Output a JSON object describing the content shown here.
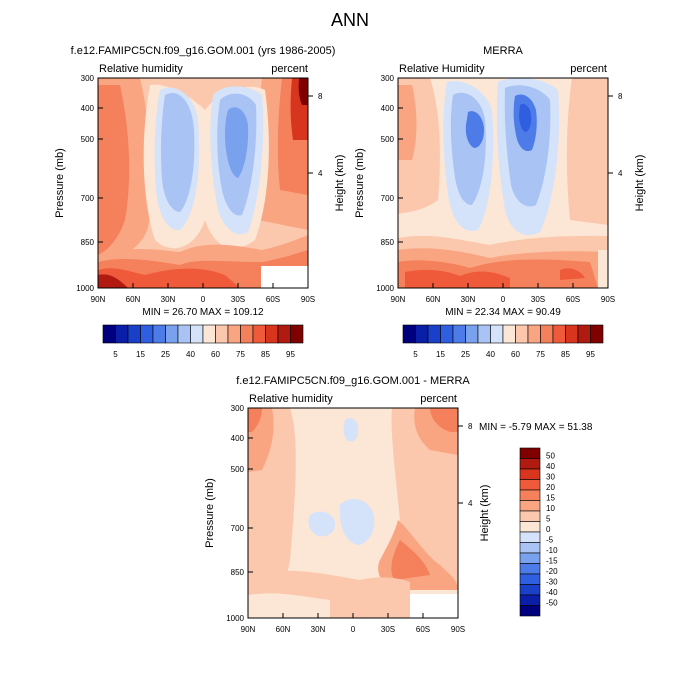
{
  "figure": {
    "title": "ANN"
  },
  "chart_data": [
    {
      "id": "model",
      "type": "heatmap",
      "title": "f.e12.FAMIPC5CN.f09_g16.GOM.001 (yrs 1986-2005)",
      "left_label": "Relative humidity",
      "right_label": "percent",
      "xlabel": "",
      "ylabel": "Pressure (mb)",
      "ylabel_right": "Height (km)",
      "x_ticks": [
        "90N",
        "60N",
        "30N",
        "0",
        "30S",
        "60S",
        "90S"
      ],
      "y_ticks": [
        "300",
        "400",
        "500",
        "700",
        "850",
        "1000"
      ],
      "y_tick_values": [
        300,
        400,
        500,
        700,
        850,
        1000
      ],
      "height_ticks": [
        "8",
        "4"
      ],
      "height_tick_values": [
        8,
        4
      ],
      "xlim": [
        90,
        -90
      ],
      "ylim": [
        1000,
        300
      ],
      "stats": "MIN = 26.70  MAX = 109.12",
      "min": 26.7,
      "max": 109.12,
      "colorbar": {
        "labels": [
          "5",
          "15",
          "25",
          "40",
          "60",
          "75",
          "85",
          "95"
        ],
        "colors": [
          "#00007f",
          "#0a1ea8",
          "#1a3fc8",
          "#2f5ee0",
          "#4d7ce8",
          "#7aa1ee",
          "#a9c4f4",
          "#d4e3f9",
          "#fce6d6",
          "#fbc8ad",
          "#f9a582",
          "#f5805c",
          "#ef5a3a",
          "#d8351f",
          "#b01a10",
          "#800000"
        ]
      }
    },
    {
      "id": "obs",
      "type": "heatmap",
      "title": "MERRA",
      "left_label": "Relative Humidity",
      "right_label": "percent",
      "xlabel": "",
      "ylabel": "Pressure (mb)",
      "ylabel_right": "Height (km)",
      "x_ticks": [
        "90N",
        "60N",
        "30N",
        "0",
        "30S",
        "60S",
        "90S"
      ],
      "y_ticks": [
        "300",
        "400",
        "500",
        "700",
        "850",
        "1000"
      ],
      "y_tick_values": [
        300,
        400,
        500,
        700,
        850,
        1000
      ],
      "height_ticks": [
        "8",
        "4"
      ],
      "height_tick_values": [
        8,
        4
      ],
      "xlim": [
        90,
        -90
      ],
      "ylim": [
        1000,
        300
      ],
      "stats": "MIN = 22.34  MAX = 90.49",
      "min": 22.34,
      "max": 90.49,
      "colorbar": {
        "labels": [
          "5",
          "15",
          "25",
          "40",
          "60",
          "75",
          "85",
          "95"
        ],
        "colors": [
          "#00007f",
          "#0a1ea8",
          "#1a3fc8",
          "#2f5ee0",
          "#4d7ce8",
          "#7aa1ee",
          "#a9c4f4",
          "#d4e3f9",
          "#fce6d6",
          "#fbc8ad",
          "#f9a582",
          "#f5805c",
          "#ef5a3a",
          "#d8351f",
          "#b01a10",
          "#800000"
        ]
      }
    },
    {
      "id": "diff",
      "type": "heatmap",
      "title": "f.e12.FAMIPC5CN.f09_g16.GOM.001 - MERRA",
      "left_label": "Relative humidity",
      "right_label": "percent",
      "xlabel": "",
      "ylabel": "Pressure (mb)",
      "ylabel_right": "Height (km)",
      "x_ticks": [
        "90N",
        "60N",
        "30N",
        "0",
        "30S",
        "60S",
        "90S"
      ],
      "y_ticks": [
        "300",
        "400",
        "500",
        "700",
        "850",
        "1000"
      ],
      "y_tick_values": [
        300,
        400,
        500,
        700,
        850,
        1000
      ],
      "height_ticks": [
        "8",
        "4"
      ],
      "height_tick_values": [
        8,
        4
      ],
      "xlim": [
        90,
        -90
      ],
      "ylim": [
        1000,
        300
      ],
      "stats": "MIN =  -5.79  MAX =  51.38",
      "min": -5.79,
      "max": 51.38,
      "colorbar": {
        "labels": [
          "50",
          "40",
          "30",
          "20",
          "15",
          "10",
          "5",
          "0",
          "-5",
          "-10",
          "-15",
          "-20",
          "-30",
          "-40",
          "-50"
        ],
        "colors": [
          "#800000",
          "#b01a10",
          "#d8351f",
          "#ef5a3a",
          "#f5805c",
          "#f9a582",
          "#fbc8ad",
          "#fce6d6",
          "#d4e3f9",
          "#a9c4f4",
          "#7aa1ee",
          "#4d7ce8",
          "#2f5ee0",
          "#1a3fc8",
          "#0a1ea8",
          "#00007f"
        ]
      }
    }
  ]
}
